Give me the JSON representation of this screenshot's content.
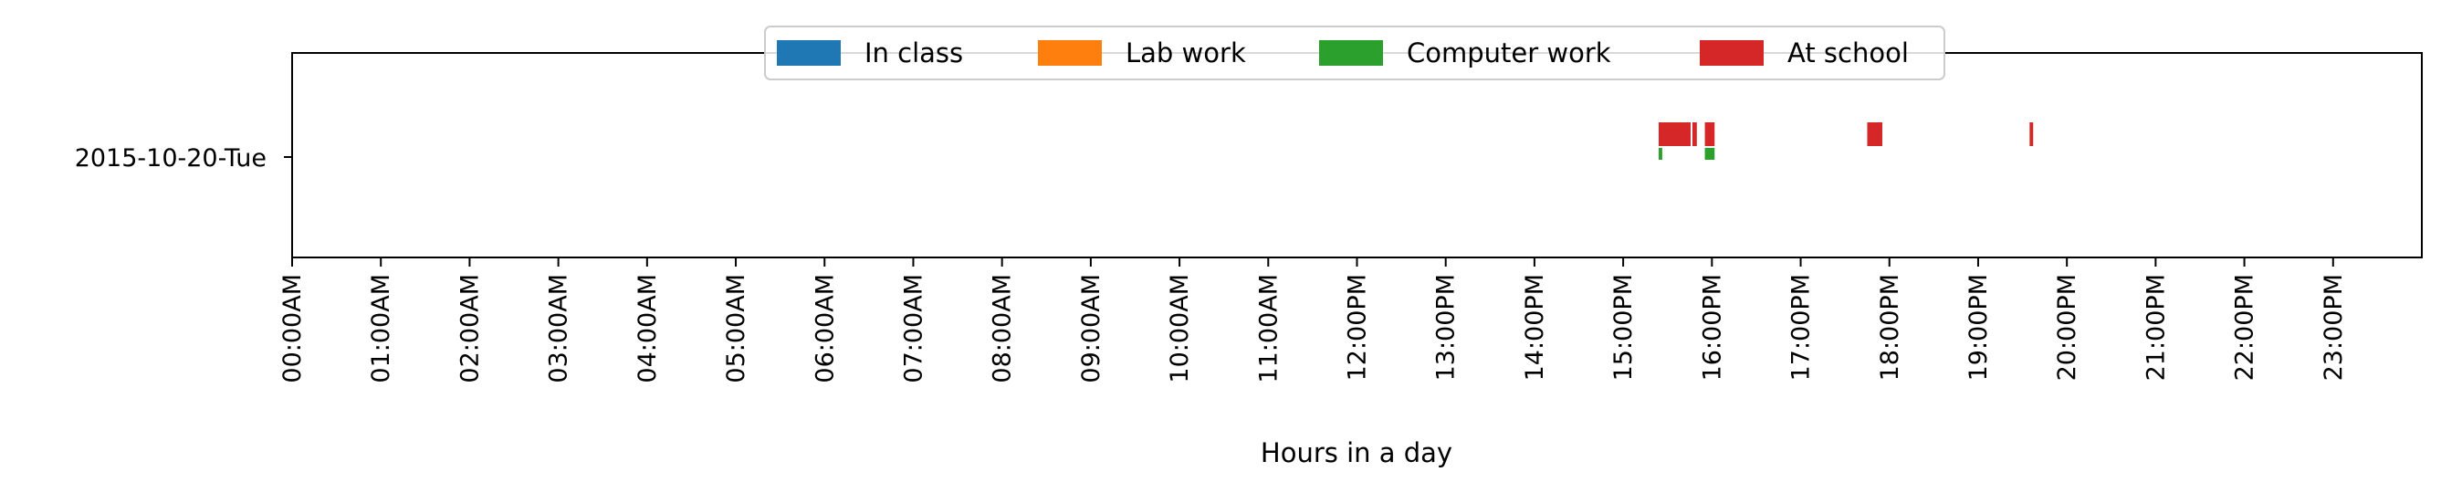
{
  "chart_data": {
    "type": "bar",
    "orientation": "horizontal",
    "title": "",
    "xlabel": "Hours in a day",
    "ylabel": "",
    "xlim": [
      0,
      24
    ],
    "x_tick_values": [
      0,
      1,
      2,
      3,
      4,
      5,
      6,
      7,
      8,
      9,
      10,
      11,
      12,
      13,
      14,
      15,
      16,
      17,
      18,
      19,
      20,
      21,
      22,
      23
    ],
    "x_tick_labels": [
      "00:00AM",
      "01:00AM",
      "02:00AM",
      "03:00AM",
      "04:00AM",
      "05:00AM",
      "06:00AM",
      "07:00AM",
      "08:00AM",
      "09:00AM",
      "10:00AM",
      "11:00AM",
      "12:00PM",
      "13:00PM",
      "14:00PM",
      "15:00PM",
      "16:00PM",
      "17:00PM",
      "18:00PM",
      "19:00PM",
      "20:00PM",
      "21:00PM",
      "22:00PM",
      "23:00PM"
    ],
    "categories": [
      "2015-10-20-Tue"
    ],
    "legend_position": "top-center",
    "grid": false,
    "series": [
      {
        "name": "In class",
        "color": "#1f77b4",
        "intervals": []
      },
      {
        "name": "Lab work",
        "color": "#ff7f0e",
        "intervals": []
      },
      {
        "name": "Computer work",
        "color": "#2ca02c",
        "intervals": [
          [
            15.4,
            15.44
          ],
          [
            15.92,
            16.03
          ]
        ]
      },
      {
        "name": "At school",
        "color": "#d62728",
        "intervals": [
          [
            15.4,
            15.76
          ],
          [
            15.78,
            15.83
          ],
          [
            15.92,
            16.03
          ],
          [
            17.75,
            17.92
          ],
          [
            19.58,
            19.62
          ]
        ]
      }
    ]
  }
}
